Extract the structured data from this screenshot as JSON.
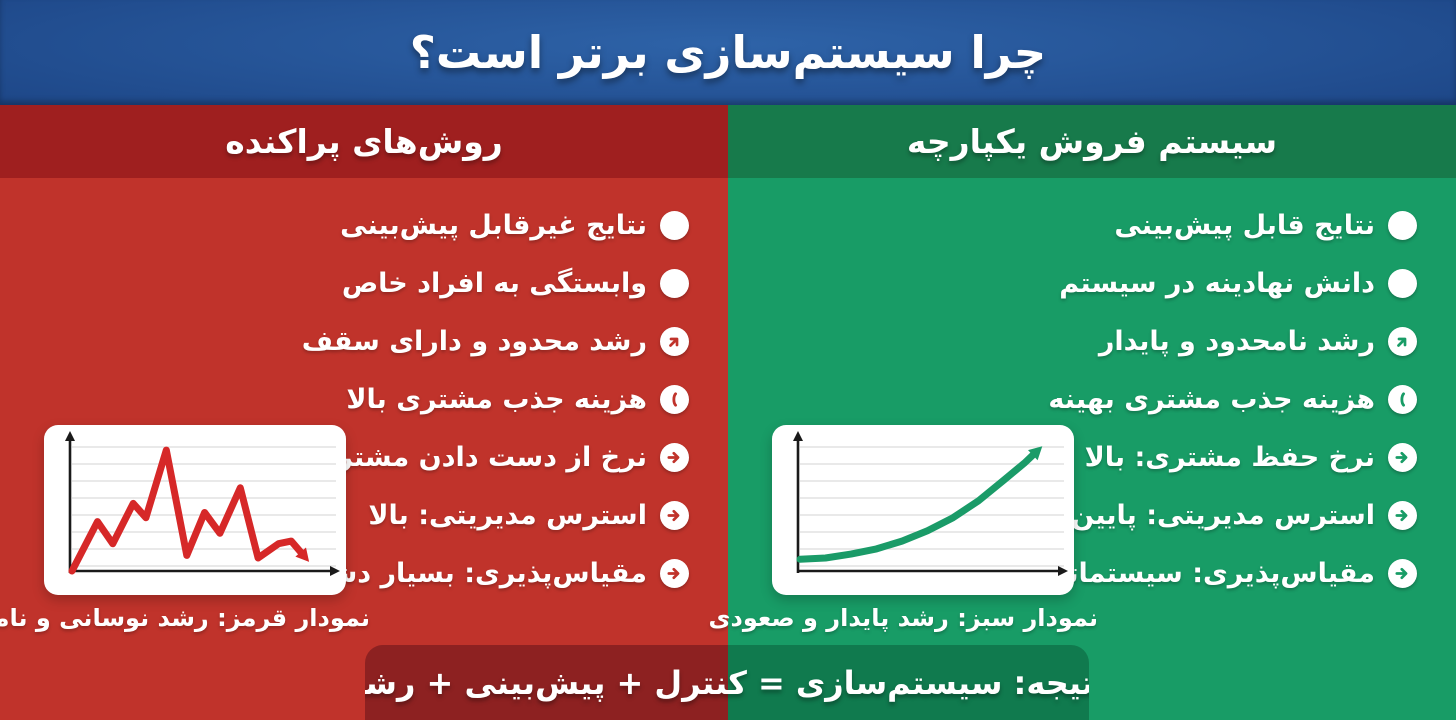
{
  "title": "چرا سیستم‌سازی برتر است؟",
  "panels": {
    "scattered": {
      "header": "روش‌های پراکنده",
      "items": [
        {
          "icon": "dot-icon",
          "label": "نتایج غیرقابل پیش‌بینی"
        },
        {
          "icon": "dot-icon",
          "label": "وابستگی به افراد خاص"
        },
        {
          "icon": "arrow-up-right-icon",
          "label": "رشد محدود و دارای سقف"
        },
        {
          "icon": "cost-bar-icon",
          "label": "هزینه جذب مشتری بالا"
        },
        {
          "icon": "arrow-right-icon",
          "label": "نرخ از دست دادن مشتری: زیاد"
        },
        {
          "icon": "arrow-right-icon",
          "label": "استرس مدیریتی: بالا"
        },
        {
          "icon": "arrow-right-icon",
          "label": "مقیاس‌پذیری: بسیار دشوار"
        }
      ],
      "chart_caption": "نمودار قرمز: رشد نوسانی و نامنظم"
    },
    "integrated": {
      "header": "سیستم فروش یکپارچه",
      "items": [
        {
          "icon": "dot-icon",
          "label": "نتایج قابل پیش‌بینی"
        },
        {
          "icon": "dot-icon",
          "label": "دانش نهادینه در سیستم"
        },
        {
          "icon": "arrow-up-right-icon",
          "label": "رشد نامحدود و پایدار"
        },
        {
          "icon": "cost-bar-icon",
          "label": "هزینه جذب مشتری بهینه"
        },
        {
          "icon": "arrow-right-icon",
          "label": "نرخ حفظ مشتری: بالا"
        },
        {
          "icon": "arrow-right-icon",
          "label": "استرس مدیریتی: پایین"
        },
        {
          "icon": "arrow-right-icon",
          "label": "مقیاس‌پذیری: سیستماتیک"
        }
      ],
      "chart_caption": "نمودار سبز: رشد پایدار و صعودی"
    }
  },
  "conclusion": "نتیجه: سیستم‌سازی = کنترل + پیش‌بینی + رشد",
  "chart_data": [
    {
      "type": "line",
      "title": "نمودار قرمز: رشد نوسانی و نامنظم",
      "xlabel": "",
      "ylabel": "",
      "grid": true,
      "axis_arrows": true,
      "trend": "volatile-irregular-declining",
      "series": [
        {
          "name": "رشد نوسانی و نامنظم",
          "color": "#d62828",
          "points": [
            [
              0,
              0
            ],
            [
              10,
              38
            ],
            [
              16,
              21
            ],
            [
              24,
              52
            ],
            [
              29,
              41
            ],
            [
              37,
              93
            ],
            [
              45,
              12
            ],
            [
              52,
              45
            ],
            [
              58,
              29
            ],
            [
              66,
              64
            ],
            [
              73,
              10
            ],
            [
              81,
              21
            ],
            [
              86,
              23
            ],
            [
              93,
              7
            ]
          ],
          "end_marker": "arrowhead"
        }
      ],
      "xlim": [
        0,
        100
      ],
      "ylim": [
        0,
        100
      ]
    },
    {
      "type": "line",
      "title": "نمودار سبز: رشد پایدار و صعودی",
      "xlabel": "",
      "ylabel": "",
      "grid": true,
      "axis_arrows": true,
      "trend": "steady-exponential-up",
      "series": [
        {
          "name": "رشد پایدار و صعودی",
          "color": "#1a9b68",
          "points": [
            [
              0,
              9
            ],
            [
              10,
              10
            ],
            [
              20,
              13
            ],
            [
              30,
              17
            ],
            [
              40,
              23
            ],
            [
              50,
              31
            ],
            [
              60,
              41
            ],
            [
              70,
              54
            ],
            [
              80,
              70
            ],
            [
              88,
              83
            ],
            [
              95,
              96
            ]
          ],
          "end_marker": "arrowhead"
        }
      ],
      "xlim": [
        0,
        100
      ],
      "ylim": [
        0,
        100
      ]
    }
  ],
  "colors": {
    "header_blue_center": "#2e63a8",
    "header_blue_edge": "#122f66",
    "red_band": "#9f1f1f",
    "red_body": "#c0332b",
    "green_band": "#177a4b",
    "green_body": "#189c66",
    "banner_red": "#8d2121",
    "banner_green": "#107a4e",
    "line_red": "#d62828",
    "line_green": "#1a9b68",
    "card_bg": "#ffffff",
    "text_white": "#ffffff"
  }
}
